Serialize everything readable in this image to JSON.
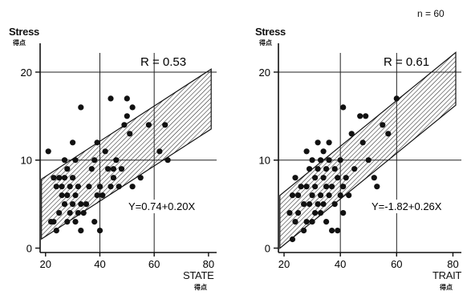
{
  "n_label": "n = 60",
  "chart_data": [
    {
      "type": "scatter",
      "ylabel": "Stress",
      "ylabel_sub": "得点",
      "xlabel": "STATE",
      "xlabel_sub": "得点",
      "r_label": "R = 0.53",
      "equation": "Y=0.74+0.20X",
      "intercept": 0.74,
      "slope": 0.2,
      "band_halfwidth": 3.4,
      "xlim": [
        18,
        83
      ],
      "ylim": [
        -0.5,
        22
      ],
      "xticks": [
        "20",
        "40",
        "60",
        "80"
      ],
      "xtick_values": [
        20,
        40,
        60,
        80
      ],
      "yticks": [
        "0",
        "10",
        "20"
      ],
      "ytick_values": [
        0,
        10,
        20
      ],
      "grid_x": [
        40,
        60
      ],
      "grid_y": [
        10,
        20
      ],
      "points": [
        [
          21,
          11
        ],
        [
          22,
          3
        ],
        [
          23,
          3
        ],
        [
          23,
          8
        ],
        [
          24,
          2
        ],
        [
          24,
          7
        ],
        [
          25,
          4
        ],
        [
          25,
          8
        ],
        [
          26,
          6
        ],
        [
          26,
          7
        ],
        [
          27,
          5
        ],
        [
          27,
          8
        ],
        [
          27,
          10
        ],
        [
          28,
          3
        ],
        [
          28,
          6
        ],
        [
          28,
          9
        ],
        [
          29,
          4
        ],
        [
          29,
          7
        ],
        [
          30,
          5
        ],
        [
          30,
          8
        ],
        [
          30,
          12
        ],
        [
          31,
          3
        ],
        [
          31,
          6
        ],
        [
          31,
          10
        ],
        [
          32,
          4
        ],
        [
          32,
          7
        ],
        [
          33,
          2
        ],
        [
          33,
          5
        ],
        [
          33,
          16
        ],
        [
          34,
          4
        ],
        [
          35,
          5
        ],
        [
          36,
          7
        ],
        [
          37,
          9
        ],
        [
          38,
          3
        ],
        [
          38,
          10
        ],
        [
          39,
          6
        ],
        [
          39,
          12
        ],
        [
          40,
          2
        ],
        [
          40,
          7
        ],
        [
          41,
          6
        ],
        [
          42,
          11
        ],
        [
          43,
          9
        ],
        [
          44,
          7
        ],
        [
          44,
          17
        ],
        [
          45,
          8
        ],
        [
          45,
          9
        ],
        [
          46,
          10
        ],
        [
          47,
          7
        ],
        [
          48,
          9
        ],
        [
          49,
          14
        ],
        [
          50,
          15
        ],
        [
          50,
          17
        ],
        [
          51,
          13
        ],
        [
          52,
          16
        ],
        [
          52,
          7
        ],
        [
          55,
          8
        ],
        [
          58,
          14
        ],
        [
          62,
          11
        ],
        [
          64,
          14
        ],
        [
          65,
          10
        ]
      ]
    },
    {
      "type": "scatter",
      "ylabel": "Stress",
      "ylabel_sub": "得点",
      "xlabel": "TRAIT",
      "xlabel_sub": "得点",
      "r_label": "R = 0.61",
      "equation": "Y=-1.82+0.26X",
      "intercept": -1.82,
      "slope": 0.26,
      "band_halfwidth": 3.0,
      "xlim": [
        18,
        83
      ],
      "ylim": [
        -0.5,
        22
      ],
      "xticks": [
        "20",
        "40",
        "60",
        "80"
      ],
      "xtick_values": [
        20,
        40,
        60,
        80
      ],
      "yticks": [
        "0",
        "10",
        "20"
      ],
      "ytick_values": [
        0,
        10,
        20
      ],
      "grid_x": [
        40,
        60
      ],
      "grid_y": [
        10,
        20
      ],
      "points": [
        [
          22,
          4
        ],
        [
          23,
          1
        ],
        [
          23,
          6
        ],
        [
          24,
          3
        ],
        [
          24,
          8
        ],
        [
          25,
          4
        ],
        [
          25,
          6
        ],
        [
          26,
          7
        ],
        [
          27,
          2
        ],
        [
          27,
          5
        ],
        [
          28,
          3
        ],
        [
          28,
          7
        ],
        [
          28,
          11
        ],
        [
          29,
          5
        ],
        [
          29,
          9
        ],
        [
          30,
          3
        ],
        [
          30,
          6
        ],
        [
          30,
          10
        ],
        [
          31,
          4
        ],
        [
          31,
          7
        ],
        [
          31,
          8
        ],
        [
          32,
          5
        ],
        [
          32,
          9
        ],
        [
          32,
          12
        ],
        [
          33,
          4
        ],
        [
          33,
          6
        ],
        [
          33,
          10
        ],
        [
          34,
          5
        ],
        [
          34,
          8
        ],
        [
          34,
          11
        ],
        [
          35,
          3
        ],
        [
          35,
          7
        ],
        [
          35,
          9
        ],
        [
          36,
          6
        ],
        [
          36,
          10
        ],
        [
          36,
          12
        ],
        [
          37,
          2
        ],
        [
          37,
          7
        ],
        [
          38,
          5
        ],
        [
          38,
          9
        ],
        [
          39,
          2
        ],
        [
          39,
          8
        ],
        [
          40,
          6
        ],
        [
          40,
          10
        ],
        [
          41,
          4
        ],
        [
          41,
          7
        ],
        [
          41,
          16
        ],
        [
          42,
          8
        ],
        [
          43,
          6
        ],
        [
          44,
          13
        ],
        [
          45,
          9
        ],
        [
          47,
          15
        ],
        [
          48,
          12
        ],
        [
          49,
          15
        ],
        [
          50,
          10
        ],
        [
          52,
          8
        ],
        [
          53,
          7
        ],
        [
          55,
          14
        ],
        [
          57,
          13
        ],
        [
          60,
          17
        ]
      ]
    }
  ]
}
